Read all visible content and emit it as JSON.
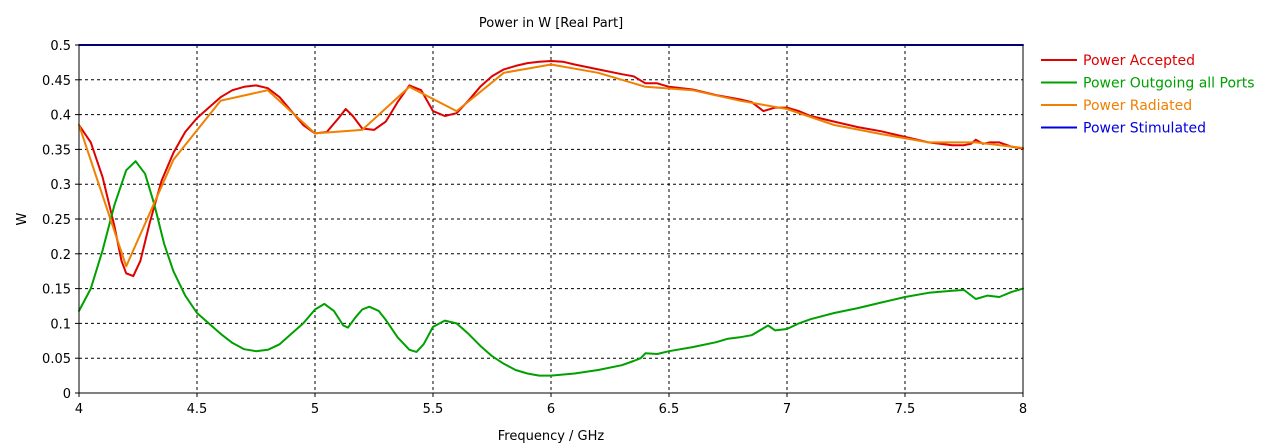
{
  "chart_data": {
    "type": "line",
    "title": "Power in W [Real Part]",
    "xlabel": "Frequency / GHz",
    "ylabel": "W",
    "xlim": [
      4,
      8
    ],
    "ylim": [
      0,
      0.5
    ],
    "x_ticks": [
      "4",
      "4.5",
      "5",
      "5.5",
      "6",
      "6.5",
      "7",
      "7.5",
      "8"
    ],
    "y_ticks": [
      "0",
      "0.05",
      "0.1",
      "0.15",
      "0.2",
      "0.25",
      "0.3",
      "0.35",
      "0.4",
      "0.45",
      "0.5"
    ],
    "grid": true,
    "legend_position": "right",
    "series": [
      {
        "name": "Power Accepted",
        "color": "#e00000",
        "points": [
          [
            4.0,
            0.385
          ],
          [
            4.05,
            0.36
          ],
          [
            4.1,
            0.31
          ],
          [
            4.15,
            0.24
          ],
          [
            4.18,
            0.19
          ],
          [
            4.2,
            0.172
          ],
          [
            4.23,
            0.168
          ],
          [
            4.26,
            0.19
          ],
          [
            4.3,
            0.245
          ],
          [
            4.35,
            0.305
          ],
          [
            4.4,
            0.345
          ],
          [
            4.45,
            0.375
          ],
          [
            4.5,
            0.395
          ],
          [
            4.55,
            0.41
          ],
          [
            4.6,
            0.425
          ],
          [
            4.65,
            0.435
          ],
          [
            4.7,
            0.44
          ],
          [
            4.75,
            0.442
          ],
          [
            4.8,
            0.438
          ],
          [
            4.85,
            0.425
          ],
          [
            4.9,
            0.405
          ],
          [
            4.95,
            0.385
          ],
          [
            5.0,
            0.373
          ],
          [
            5.05,
            0.375
          ],
          [
            5.1,
            0.395
          ],
          [
            5.13,
            0.408
          ],
          [
            5.16,
            0.398
          ],
          [
            5.2,
            0.38
          ],
          [
            5.25,
            0.378
          ],
          [
            5.3,
            0.39
          ],
          [
            5.35,
            0.418
          ],
          [
            5.4,
            0.442
          ],
          [
            5.45,
            0.435
          ],
          [
            5.5,
            0.405
          ],
          [
            5.55,
            0.398
          ],
          [
            5.6,
            0.402
          ],
          [
            5.65,
            0.42
          ],
          [
            5.7,
            0.44
          ],
          [
            5.75,
            0.455
          ],
          [
            5.8,
            0.465
          ],
          [
            5.85,
            0.47
          ],
          [
            5.9,
            0.474
          ],
          [
            5.95,
            0.476
          ],
          [
            6.0,
            0.477
          ],
          [
            6.05,
            0.476
          ],
          [
            6.1,
            0.472
          ],
          [
            6.2,
            0.465
          ],
          [
            6.3,
            0.458
          ],
          [
            6.35,
            0.455
          ],
          [
            6.4,
            0.445
          ],
          [
            6.45,
            0.445
          ],
          [
            6.5,
            0.44
          ],
          [
            6.6,
            0.436
          ],
          [
            6.7,
            0.428
          ],
          [
            6.8,
            0.422
          ],
          [
            6.85,
            0.418
          ],
          [
            6.9,
            0.405
          ],
          [
            6.95,
            0.41
          ],
          [
            7.0,
            0.41
          ],
          [
            7.05,
            0.405
          ],
          [
            7.1,
            0.398
          ],
          [
            7.2,
            0.39
          ],
          [
            7.3,
            0.382
          ],
          [
            7.4,
            0.376
          ],
          [
            7.5,
            0.368
          ],
          [
            7.6,
            0.36
          ],
          [
            7.7,
            0.356
          ],
          [
            7.75,
            0.356
          ],
          [
            7.78,
            0.358
          ],
          [
            7.8,
            0.364
          ],
          [
            7.83,
            0.358
          ],
          [
            7.86,
            0.36
          ],
          [
            7.9,
            0.36
          ],
          [
            7.95,
            0.354
          ],
          [
            8.0,
            0.351
          ]
        ]
      },
      {
        "name": "Power Outgoing all Ports",
        "color": "#00a000",
        "points": [
          [
            4.0,
            0.118
          ],
          [
            4.05,
            0.15
          ],
          [
            4.1,
            0.205
          ],
          [
            4.15,
            0.27
          ],
          [
            4.2,
            0.32
          ],
          [
            4.24,
            0.333
          ],
          [
            4.28,
            0.315
          ],
          [
            4.32,
            0.27
          ],
          [
            4.36,
            0.215
          ],
          [
            4.4,
            0.175
          ],
          [
            4.45,
            0.14
          ],
          [
            4.5,
            0.115
          ],
          [
            4.55,
            0.1
          ],
          [
            4.6,
            0.085
          ],
          [
            4.65,
            0.072
          ],
          [
            4.7,
            0.063
          ],
          [
            4.75,
            0.06
          ],
          [
            4.8,
            0.062
          ],
          [
            4.85,
            0.07
          ],
          [
            4.9,
            0.085
          ],
          [
            4.95,
            0.1
          ],
          [
            5.0,
            0.12
          ],
          [
            5.04,
            0.128
          ],
          [
            5.08,
            0.118
          ],
          [
            5.12,
            0.097
          ],
          [
            5.14,
            0.094
          ],
          [
            5.17,
            0.108
          ],
          [
            5.2,
            0.12
          ],
          [
            5.23,
            0.124
          ],
          [
            5.27,
            0.118
          ],
          [
            5.3,
            0.105
          ],
          [
            5.35,
            0.08
          ],
          [
            5.4,
            0.062
          ],
          [
            5.43,
            0.059
          ],
          [
            5.46,
            0.07
          ],
          [
            5.5,
            0.095
          ],
          [
            5.55,
            0.104
          ],
          [
            5.6,
            0.1
          ],
          [
            5.65,
            0.085
          ],
          [
            5.7,
            0.068
          ],
          [
            5.75,
            0.053
          ],
          [
            5.8,
            0.042
          ],
          [
            5.85,
            0.033
          ],
          [
            5.9,
            0.028
          ],
          [
            5.95,
            0.025
          ],
          [
            6.0,
            0.025
          ],
          [
            6.1,
            0.028
          ],
          [
            6.2,
            0.033
          ],
          [
            6.3,
            0.04
          ],
          [
            6.35,
            0.046
          ],
          [
            6.38,
            0.05
          ],
          [
            6.4,
            0.057
          ],
          [
            6.45,
            0.056
          ],
          [
            6.5,
            0.06
          ],
          [
            6.6,
            0.066
          ],
          [
            6.7,
            0.073
          ],
          [
            6.75,
            0.078
          ],
          [
            6.8,
            0.08
          ],
          [
            6.85,
            0.083
          ],
          [
            6.9,
            0.093
          ],
          [
            6.92,
            0.097
          ],
          [
            6.95,
            0.09
          ],
          [
            7.0,
            0.092
          ],
          [
            7.05,
            0.1
          ],
          [
            7.1,
            0.106
          ],
          [
            7.2,
            0.115
          ],
          [
            7.3,
            0.122
          ],
          [
            7.4,
            0.13
          ],
          [
            7.5,
            0.138
          ],
          [
            7.6,
            0.144
          ],
          [
            7.7,
            0.147
          ],
          [
            7.75,
            0.148
          ],
          [
            7.8,
            0.135
          ],
          [
            7.85,
            0.14
          ],
          [
            7.9,
            0.138
          ],
          [
            7.95,
            0.145
          ],
          [
            8.0,
            0.15
          ]
        ]
      },
      {
        "name": "Power Radiated",
        "color": "#f08000",
        "points": [
          [
            4.0,
            0.385
          ],
          [
            4.2,
            0.182
          ],
          [
            4.4,
            0.335
          ],
          [
            4.6,
            0.42
          ],
          [
            4.8,
            0.435
          ],
          [
            5.0,
            0.373
          ],
          [
            5.2,
            0.378
          ],
          [
            5.4,
            0.44
          ],
          [
            5.6,
            0.405
          ],
          [
            5.8,
            0.46
          ],
          [
            6.0,
            0.472
          ],
          [
            6.2,
            0.46
          ],
          [
            6.4,
            0.44
          ],
          [
            6.6,
            0.435
          ],
          [
            6.8,
            0.42
          ],
          [
            7.0,
            0.408
          ],
          [
            7.2,
            0.385
          ],
          [
            7.4,
            0.372
          ],
          [
            7.6,
            0.36
          ],
          [
            7.8,
            0.36
          ],
          [
            8.0,
            0.352
          ]
        ]
      },
      {
        "name": "Power Stimulated",
        "color": "#0000e0",
        "points": [
          [
            4.0,
            0.5
          ],
          [
            8.0,
            0.5
          ]
        ]
      }
    ]
  }
}
